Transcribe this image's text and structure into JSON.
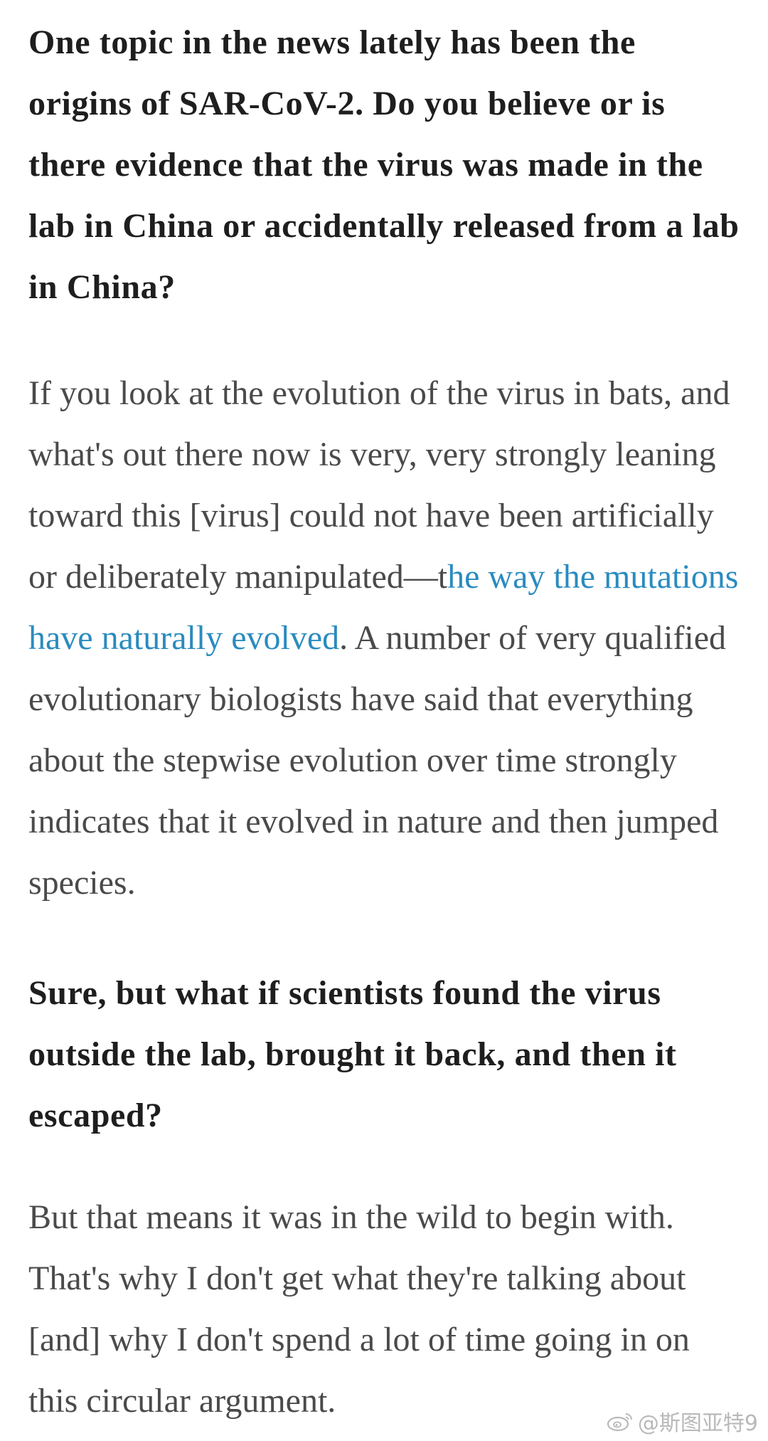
{
  "interview": {
    "question_1": "One topic in the news lately has been the origins of SAR-CoV-2. Do you believe or is there evidence that the virus was made in the lab in China or accidentally released from a lab in China?",
    "answer_1": {
      "text_before_link": "If you look at the evolution of the virus in bats, and what's out there now is very, very strongly leaning toward this [virus] could not have been artificially or deliberately manipulated—t",
      "link_text": "he way the mutations have naturally evolved",
      "text_after_link": ". A number of very qualified evolutionary biologists have said that everything about the stepwise evolution over time strongly indicates that it evolved in nature and then jumped species."
    },
    "question_2": "Sure, but what if scientists found the virus outside the lab, brought it back, and then it escaped?",
    "answer_2": "But that means it was in the wild to begin with. That's why I don't get what they're talking about [and] why I don't spend a lot of time going in on this circular argument."
  },
  "watermark": {
    "icon": "weibo-icon",
    "text": "@斯图亚特9"
  },
  "colors": {
    "question_text": "#1e1e1e",
    "answer_text": "#4a4a4a",
    "link": "#2a8bbf",
    "watermark": "#b9b9b9"
  }
}
